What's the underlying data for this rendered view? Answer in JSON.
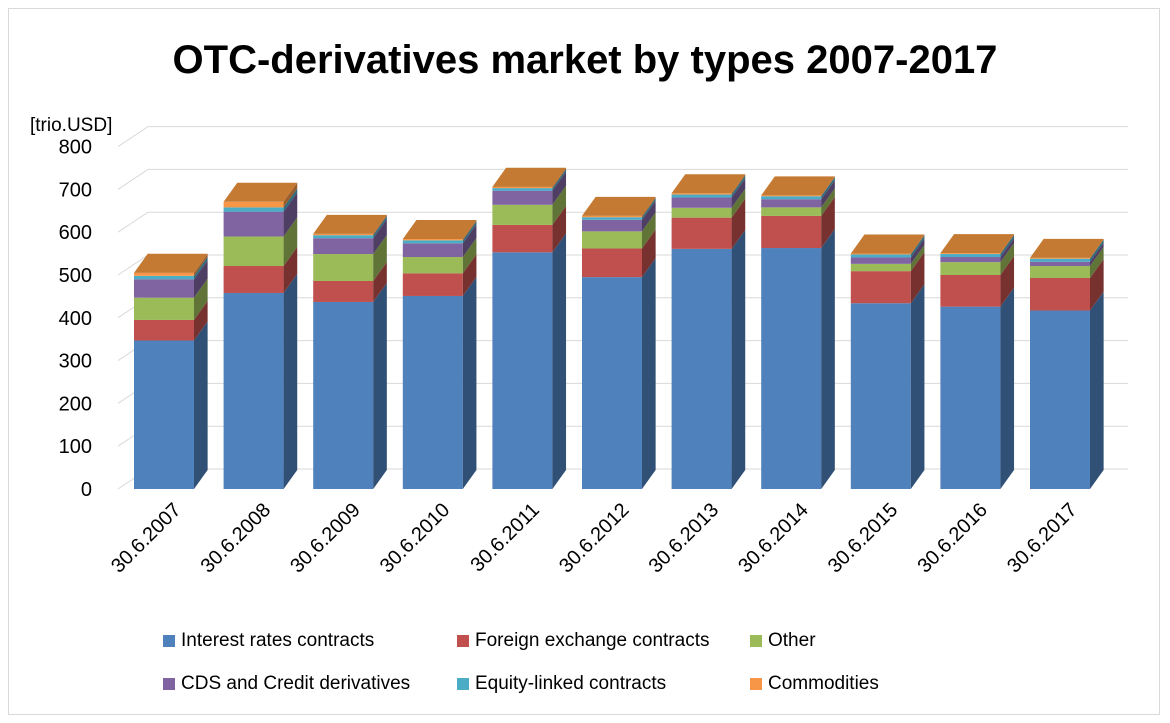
{
  "chart_data": {
    "type": "bar",
    "stacked": true,
    "style": "3d",
    "title": "OTC-derivatives market by types 2007-2017",
    "unit_label": "[trio.USD]",
    "xlabel": "",
    "ylabel": "",
    "ylim": [
      0,
      800
    ],
    "yticks": [
      0,
      100,
      200,
      300,
      400,
      500,
      600,
      700,
      800
    ],
    "grid": true,
    "legend_position": "bottom",
    "categories": [
      "30.6.2007",
      "30.6.2008",
      "30.6.2009",
      "30.6.2010",
      "30.6.2011",
      "30.6.2012",
      "30.6.2013",
      "30.6.2014",
      "30.6.2015",
      "30.6.2016",
      "30.6.2017"
    ],
    "series": [
      {
        "name": "Interest rates contracts",
        "color": "#4f81bd",
        "values": [
          347,
          458,
          437,
          451,
          553,
          495,
          561,
          563,
          434,
          426,
          417
        ]
      },
      {
        "name": "Foreign exchange contracts",
        "color": "#c0504d",
        "values": [
          48,
          63,
          49,
          53,
          64,
          67,
          73,
          75,
          75,
          74,
          76
        ]
      },
      {
        "name": "Other",
        "color": "#9bbb59",
        "values": [
          52,
          69,
          63,
          38,
          47,
          40,
          23,
          20,
          17,
          30,
          28
        ]
      },
      {
        "name": "CDS and Credit derivatives",
        "color": "#8064a2",
        "values": [
          43,
          58,
          37,
          32,
          33,
          27,
          24,
          19,
          15,
          12,
          10
        ]
      },
      {
        "name": "Equity-linked contracts",
        "color": "#4bacc6",
        "values": [
          8,
          10,
          7,
          7,
          6,
          6,
          7,
          7,
          7,
          7,
          7
        ]
      },
      {
        "name": "Commodities",
        "color": "#f79646",
        "values": [
          7,
          13,
          3,
          3,
          3,
          3,
          3,
          2,
          2,
          2,
          2
        ]
      }
    ]
  }
}
